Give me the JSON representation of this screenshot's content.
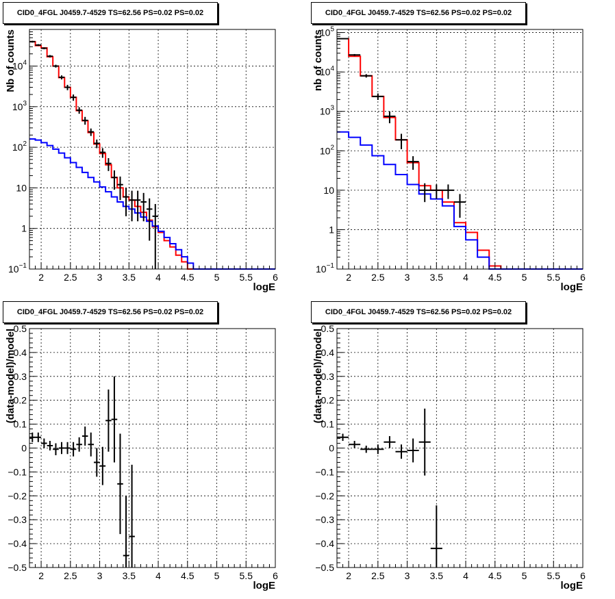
{
  "panels": [
    {
      "title": "CID0_4FGL J0459.7-4529 TS=62.56 PS=0.02 PS=0.02"
    },
    {
      "title": "CID0_4FGL J0459.7-4529 TS=62.56 PS=0.02 PS=0.02"
    },
    {
      "title": "CID0_4FGL J0459.7-4529 TS=62.56 PS=0.02 PS=0.02"
    },
    {
      "title": "CID0_4FGL J0459.7-4529 TS=62.56 PS=0.02 PS=0.02"
    }
  ],
  "chart_data": [
    {
      "type": "line",
      "title": "CID0_4FGL J0459.7-4529 TS=62.56 PS=0.02 PS=0.02",
      "xlabel": "logE",
      "ylabel": "Nb of counts",
      "xlim": [
        1.8,
        6
      ],
      "ylim": [
        0.1,
        80000
      ],
      "yscale": "log",
      "grid": true,
      "xticks": [
        "2",
        "2.5",
        "3",
        "3.5",
        "4",
        "4.5",
        "5",
        "5.5",
        "6"
      ],
      "yticks": [
        "10^-1",
        "1",
        "10",
        "10^2",
        "10^3",
        "10^4"
      ],
      "series": [
        {
          "color": "#ff0000",
          "style": "step",
          "edges": [
            1.8,
            1.9,
            2.0,
            2.1,
            2.2,
            2.3,
            2.4,
            2.5,
            2.6,
            2.7,
            2.8,
            2.9,
            3.0,
            3.1,
            3.2,
            3.3,
            3.4,
            3.5,
            3.6,
            3.7,
            3.8,
            3.9,
            4.0,
            4.1,
            4.2,
            4.3,
            4.4,
            4.5,
            4.6,
            4.7,
            4.8,
            4.9,
            5.0,
            5.1,
            5.2,
            5.3,
            5.4,
            5.5,
            5.6,
            5.7,
            5.8,
            5.9,
            6.0
          ],
          "values": [
            40000,
            32000,
            28000,
            17000,
            10000,
            5200,
            3000,
            1700,
            800,
            450,
            230,
            120,
            70,
            37,
            18,
            10,
            6,
            5,
            3.5,
            2.5,
            1.6,
            1.1,
            0.8,
            0.5,
            0.35,
            0.22,
            0.15,
            0.1,
            0.1,
            0.1,
            0.1,
            0.1,
            0.1,
            0.1,
            0.1,
            0.1,
            0.1,
            0.1,
            0.1,
            0.1,
            0.1,
            0.1
          ]
        },
        {
          "color": "#0000ff",
          "style": "step",
          "edges": [
            1.8,
            1.9,
            2.0,
            2.1,
            2.2,
            2.3,
            2.4,
            2.5,
            2.6,
            2.7,
            2.8,
            2.9,
            3.0,
            3.1,
            3.2,
            3.3,
            3.4,
            3.5,
            3.6,
            3.7,
            3.8,
            3.9,
            4.0,
            4.1,
            4.2,
            4.3,
            4.4,
            4.5,
            4.6,
            4.7,
            4.8,
            4.9,
            5.0,
            5.1,
            5.2,
            5.3,
            5.4,
            5.5,
            5.6,
            5.7,
            5.8,
            5.9,
            6.0
          ],
          "values": [
            160,
            150,
            130,
            110,
            90,
            72,
            55,
            42,
            32,
            24,
            18,
            14,
            10.5,
            8,
            6,
            4.5,
            3.5,
            3,
            2.4,
            1.9,
            1.5,
            1.15,
            0.85,
            0.6,
            0.42,
            0.3,
            0.2,
            0.14,
            0.1,
            0.1,
            0.1,
            0.1,
            0.1,
            0.1,
            0.1,
            0.1,
            0.1,
            0.1,
            0.1,
            0.1,
            0.1,
            0.1
          ]
        }
      ],
      "points": {
        "color": "#000000",
        "x": [
          1.85,
          1.95,
          2.05,
          2.15,
          2.25,
          2.35,
          2.45,
          2.55,
          2.65,
          2.75,
          2.85,
          2.95,
          3.05,
          3.15,
          3.25,
          3.35,
          3.45,
          3.55,
          3.65,
          3.75,
          3.85,
          3.95
        ],
        "xerr": 0.05,
        "y": [
          40000,
          33000,
          27500,
          17500,
          10000,
          5300,
          3000,
          1700,
          820,
          460,
          240,
          125,
          75,
          40,
          18,
          12,
          6,
          5,
          5,
          4.5,
          3,
          2
        ],
        "yerr": [
          2000,
          1700,
          1500,
          1200,
          800,
          600,
          450,
          300,
          150,
          100,
          50,
          30,
          20,
          14,
          9,
          7,
          4,
          3.5,
          3.5,
          3,
          2.5,
          2
        ]
      }
    },
    {
      "type": "line",
      "title": "CID0_4FGL J0459.7-4529 TS=62.56 PS=0.02 PS=0.02",
      "xlabel": "logE",
      "ylabel": "nb of counts",
      "xlim": [
        1.8,
        6
      ],
      "ylim": [
        0.1,
        120000
      ],
      "yscale": "log",
      "grid": true,
      "xticks": [
        "2",
        "2.5",
        "3",
        "3.5",
        "4",
        "4.5",
        "5",
        "5.5",
        "6"
      ],
      "yticks": [
        "10^-1",
        "1",
        "10",
        "10^2",
        "10^3",
        "10^4",
        "10^5"
      ],
      "series": [
        {
          "color": "#ff0000",
          "style": "step",
          "edges": [
            1.8,
            2.0,
            2.2,
            2.4,
            2.6,
            2.8,
            3.0,
            3.2,
            3.4,
            3.6,
            3.8,
            4.0,
            4.2,
            4.4,
            4.6,
            4.8,
            5.0,
            5.2,
            5.4,
            5.6,
            5.8,
            6.0
          ],
          "values": [
            70000,
            25000,
            8000,
            2400,
            700,
            190,
            50,
            13,
            10,
            5,
            1.5,
            0.85,
            0.3,
            0.12,
            0.1,
            0.1,
            0.1,
            0.1,
            0.1,
            0.1,
            0.1
          ]
        },
        {
          "color": "#0000ff",
          "style": "step",
          "edges": [
            1.8,
            2.0,
            2.2,
            2.4,
            2.6,
            2.8,
            3.0,
            3.2,
            3.4,
            3.6,
            3.8,
            4.0,
            4.2,
            4.4,
            4.6,
            4.8,
            5.0,
            5.2,
            5.4,
            5.6,
            5.8,
            6.0
          ],
          "values": [
            300,
            220,
            140,
            75,
            45,
            25,
            14,
            8,
            6,
            4,
            1.2,
            0.55,
            0.2,
            0.1,
            0.1,
            0.1,
            0.1,
            0.1,
            0.1,
            0.1,
            0.1
          ]
        }
      ],
      "points": {
        "color": "#000000",
        "x": [
          1.9,
          2.1,
          2.3,
          2.5,
          2.7,
          2.9,
          3.1,
          3.3,
          3.5,
          3.7,
          3.9
        ],
        "xerr": 0.1,
        "y": [
          70000,
          27000,
          8000,
          2400,
          750,
          190,
          53,
          10,
          10,
          10,
          5
        ],
        "yerr": [
          2000,
          1500,
          800,
          450,
          250,
          80,
          20,
          5,
          4,
          4,
          3
        ]
      }
    },
    {
      "type": "scatter",
      "title": "CID0_4FGL J0459.7-4529 TS=62.56 PS=0.02 PS=0.02",
      "xlabel": "logE",
      "ylabel": "(data-model)/model",
      "xlim": [
        1.8,
        6
      ],
      "ylim": [
        -0.5,
        0.5
      ],
      "grid": true,
      "xticks": [
        "2",
        "2.5",
        "3",
        "3.5",
        "4",
        "4.5",
        "5",
        "5.5",
        "6"
      ],
      "yticks": [
        "−0.5",
        "−0.4",
        "−0.3",
        "−0.2",
        "−0.1",
        "0",
        "0.1",
        "0.2",
        "0.3",
        "0.4",
        "0.5"
      ],
      "points": {
        "color": "#000000",
        "x": [
          1.85,
          1.95,
          2.05,
          2.15,
          2.25,
          2.35,
          2.45,
          2.55,
          2.65,
          2.75,
          2.85,
          2.95,
          3.05,
          3.15,
          3.25,
          3.35,
          3.45,
          3.55
        ],
        "xerr": 0.05,
        "y": [
          0.045,
          0.045,
          0.02,
          0.01,
          -0.005,
          0.0,
          0.0,
          -0.005,
          0.015,
          0.05,
          0.015,
          -0.06,
          -0.075,
          0.115,
          0.12,
          -0.15,
          -0.45,
          -0.37
        ],
        "yerr": [
          0.02,
          0.02,
          0.02,
          0.02,
          0.025,
          0.025,
          0.025,
          0.03,
          0.03,
          0.04,
          0.05,
          0.06,
          0.08,
          0.13,
          0.18,
          0.21,
          0.25,
          0.3
        ]
      }
    },
    {
      "type": "scatter",
      "title": "CID0_4FGL J0459.7-4529 TS=62.56 PS=0.02 PS=0.02",
      "xlabel": "logE",
      "ylabel": "(data-model)/model",
      "xlim": [
        1.8,
        6
      ],
      "ylim": [
        -0.5,
        0.5
      ],
      "grid": true,
      "xticks": [
        "2",
        "2.5",
        "3",
        "3.5",
        "4",
        "4.5",
        "5",
        "5.5",
        "6"
      ],
      "yticks": [
        "−0.5",
        "−0.4",
        "−0.3",
        "−0.2",
        "−0.1",
        "0",
        "0.1",
        "0.2",
        "0.3",
        "0.4",
        "0.5"
      ],
      "points": {
        "color": "#000000",
        "x": [
          1.9,
          2.1,
          2.3,
          2.5,
          2.7,
          2.9,
          3.1,
          3.3,
          3.5
        ],
        "xerr": 0.1,
        "y": [
          0.045,
          0.015,
          -0.005,
          -0.005,
          0.025,
          -0.015,
          -0.01,
          0.025,
          -0.42
        ],
        "yerr": [
          0.015,
          0.015,
          0.015,
          0.02,
          0.025,
          0.03,
          0.05,
          0.14,
          0.18
        ]
      }
    }
  ]
}
